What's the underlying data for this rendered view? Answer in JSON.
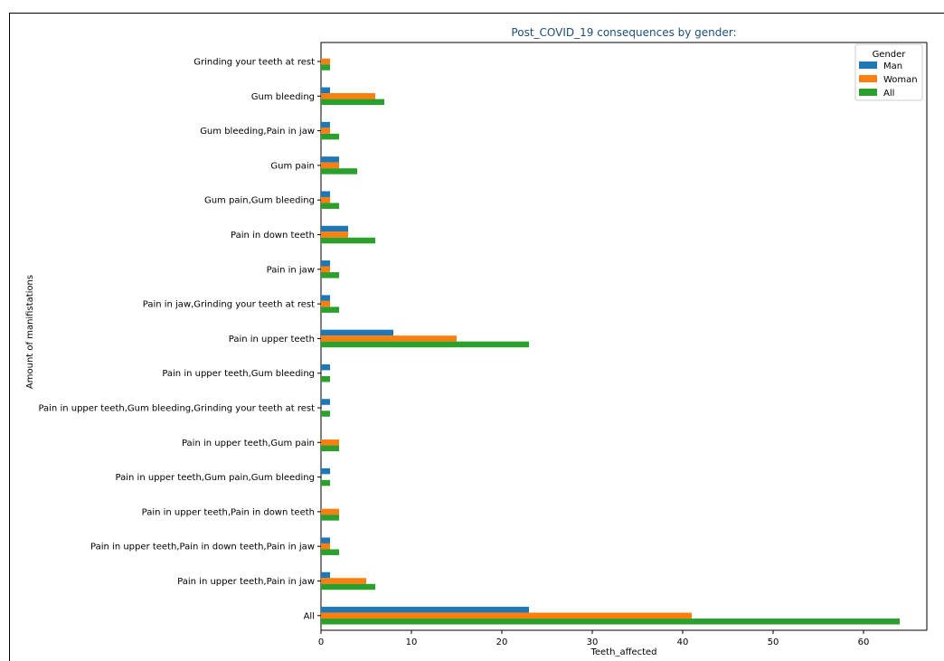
{
  "chart_data": {
    "type": "bar",
    "orientation": "horizontal",
    "title": "Post_COVID_19 consequences by gender:",
    "xlabel": "Teeth_affected",
    "ylabel": "Amount of manifistations",
    "xlim": [
      0,
      67
    ],
    "xticks": [
      0,
      10,
      20,
      30,
      40,
      50,
      60
    ],
    "categories": [
      "Grinding your teeth at rest",
      "Gum bleeding",
      "Gum bleeding,Pain in jaw",
      "Gum pain",
      "Gum pain,Gum bleeding",
      "Pain in down teeth",
      "Pain in jaw",
      "Pain in jaw,Grinding your teeth at rest",
      "Pain in upper teeth",
      "Pain in upper teeth,Gum bleeding",
      "Pain in upper teeth,Gum bleeding,Grinding your teeth at rest",
      "Pain in upper teeth,Gum pain",
      "Pain in upper teeth,Gum pain,Gum bleeding",
      "Pain in upper teeth,Pain in down teeth",
      "Pain in upper teeth,Pain in down teeth,Pain in jaw",
      "Pain in upper teeth,Pain in jaw",
      "All"
    ],
    "legend": {
      "title": "Gender",
      "position": "top-right"
    },
    "grid": false,
    "series": [
      {
        "name": "Man",
        "color": "#1f77b4",
        "values": [
          0,
          1,
          1,
          2,
          1,
          3,
          1,
          1,
          8,
          1,
          1,
          0,
          1,
          0,
          1,
          1,
          23
        ]
      },
      {
        "name": "Woman",
        "color": "#ff7f0e",
        "values": [
          1,
          6,
          1,
          2,
          1,
          3,
          1,
          1,
          15,
          0,
          0,
          2,
          0,
          2,
          1,
          5,
          41
        ]
      },
      {
        "name": "All",
        "color": "#2ca02c",
        "values": [
          1,
          7,
          2,
          4,
          2,
          6,
          2,
          2,
          23,
          1,
          1,
          2,
          1,
          2,
          2,
          6,
          64
        ]
      }
    ]
  }
}
